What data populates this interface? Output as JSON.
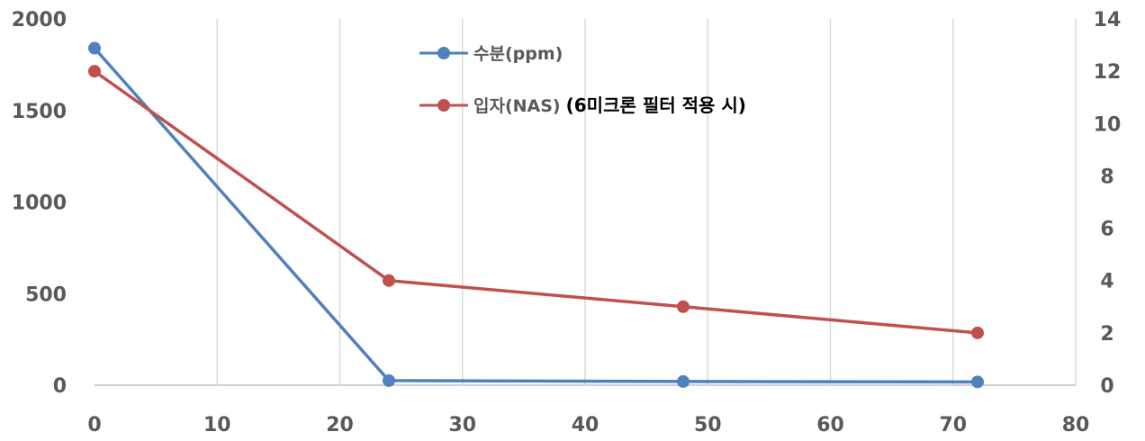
{
  "chart_data": {
    "type": "line",
    "x_axis": {
      "min": 0,
      "max": 80,
      "ticks": [
        0,
        10,
        20,
        30,
        40,
        50,
        60,
        70,
        80
      ]
    },
    "y_left": {
      "min": 0,
      "max": 2000,
      "ticks": [
        0,
        500,
        1000,
        1500,
        2000
      ]
    },
    "y_right": {
      "min": 0,
      "max": 14,
      "ticks": [
        0,
        2,
        4,
        6,
        8,
        10,
        12,
        14
      ]
    },
    "grid": "vertical",
    "legend_position": "top-center",
    "series": [
      {
        "name": "수분(ppm)",
        "axis": "left",
        "color": "#4f81bd",
        "points": [
          {
            "x": 0,
            "y": 1840
          },
          {
            "x": 24,
            "y": 25
          },
          {
            "x": 48,
            "y": 20
          },
          {
            "x": 72,
            "y": 18
          }
        ]
      },
      {
        "name": "입자(NAS)",
        "axis": "right",
        "color": "#c0504d",
        "points": [
          {
            "x": 0,
            "y": 12
          },
          {
            "x": 24,
            "y": 4
          },
          {
            "x": 48,
            "y": 3
          },
          {
            "x": 72,
            "y": 2
          }
        ]
      }
    ],
    "annotation": "(6미크론 필터 적용 시)"
  }
}
